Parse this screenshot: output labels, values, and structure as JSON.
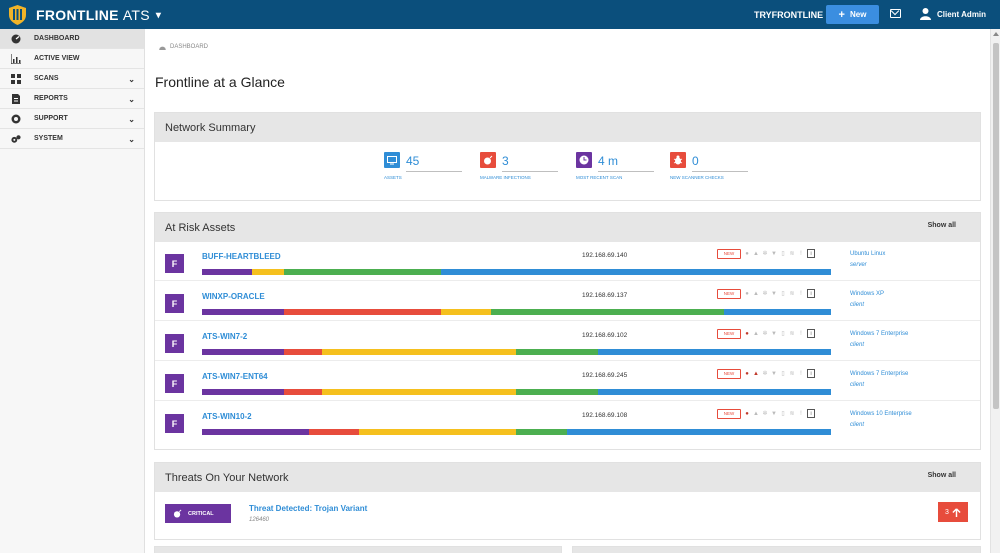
{
  "topbar": {
    "brand": "FRONTLINE",
    "product": "ATS",
    "try_link": "TRYFRONTLINE",
    "new_button": "New",
    "user_name": "Client Admin"
  },
  "sidebar": {
    "items": [
      {
        "label": "DASHBOARD",
        "icon": "dashboard-icon"
      },
      {
        "label": "ACTIVE VIEW",
        "icon": "chart-icon"
      },
      {
        "label": "SCANS",
        "icon": "grid-icon"
      },
      {
        "label": "REPORTS",
        "icon": "document-icon"
      },
      {
        "label": "SUPPORT",
        "icon": "lifebuoy-icon"
      },
      {
        "label": "SYSTEM",
        "icon": "gears-icon"
      }
    ]
  },
  "breadcrumb": "DASHBOARD",
  "page_title": "Frontline at a Glance",
  "network_summary": {
    "title": "Network Summary",
    "stats": [
      {
        "value": "45",
        "label": "ASSETS",
        "color": "#2f8dd6",
        "icon": "monitor-icon"
      },
      {
        "value": "3",
        "label": "MALWARE INFECTIONS",
        "color": "#e74c3c",
        "icon": "bomb-icon"
      },
      {
        "value": "4 m",
        "label": "MOST RECENT SCAN",
        "color": "#6b34a0",
        "icon": "clock-icon"
      },
      {
        "value": "0",
        "label": "NEW SCANNER CHECKS",
        "color": "#e74c3c",
        "icon": "bug-icon"
      }
    ]
  },
  "at_risk": {
    "title": "At Risk Assets",
    "show_all": "Show all",
    "rows": [
      {
        "badge": "F",
        "name": "BUFF-HEARTBLEED",
        "ip": "192.168.69.140",
        "new": "NEW",
        "os": "Ubuntu Linux",
        "type": "server",
        "bomb": false,
        "warn": false,
        "risk": [
          0.08,
          0.05,
          0.25,
          0.62
        ]
      },
      {
        "badge": "F",
        "name": "WINXP-ORACLE",
        "ip": "192.168.69.137",
        "new": "NEW",
        "os": "Windows XP",
        "type": "client",
        "bomb": false,
        "warn": false,
        "risk": [
          0.13,
          0.25,
          0.08,
          0.37,
          0.17
        ]
      },
      {
        "badge": "F",
        "name": "ATS-WIN7-2",
        "ip": "192.168.69.102",
        "new": "NEW",
        "os": "Windows 7 Enterprise",
        "type": "client",
        "bomb": true,
        "warn": false,
        "risk": [
          0.13,
          0.06,
          0.31,
          0.13,
          0.37
        ]
      },
      {
        "badge": "F",
        "name": "ATS-WIN7-ENT64",
        "ip": "192.168.69.245",
        "new": "NEW",
        "os": "Windows 7 Enterprise",
        "type": "client",
        "bomb": true,
        "warn": true,
        "risk": [
          0.13,
          0.06,
          0.31,
          0.13,
          0.37
        ]
      },
      {
        "badge": "F",
        "name": "ATS-WIN10-2",
        "ip": "192.168.69.108",
        "new": "NEW",
        "os": "Windows 10 Enterprise",
        "type": "client",
        "bomb": true,
        "warn": false,
        "risk": [
          0.17,
          0.08,
          0.25,
          0.08,
          0.42
        ]
      }
    ],
    "risk_colors": {
      "five": [
        "#6b34a0",
        "#e74c3c",
        "#f5c01e",
        "#4caf50",
        "#2f8dd6"
      ],
      "four": [
        "#6b34a0",
        "#f5c01e",
        "#4caf50",
        "#2f8dd6"
      ]
    }
  },
  "threats": {
    "title": "Threats On Your Network",
    "show_all": "Show all",
    "badge": "CRITICAL",
    "threat_title": "Threat Detected: Trojan Variant",
    "threat_id": "126460",
    "count": "3"
  }
}
